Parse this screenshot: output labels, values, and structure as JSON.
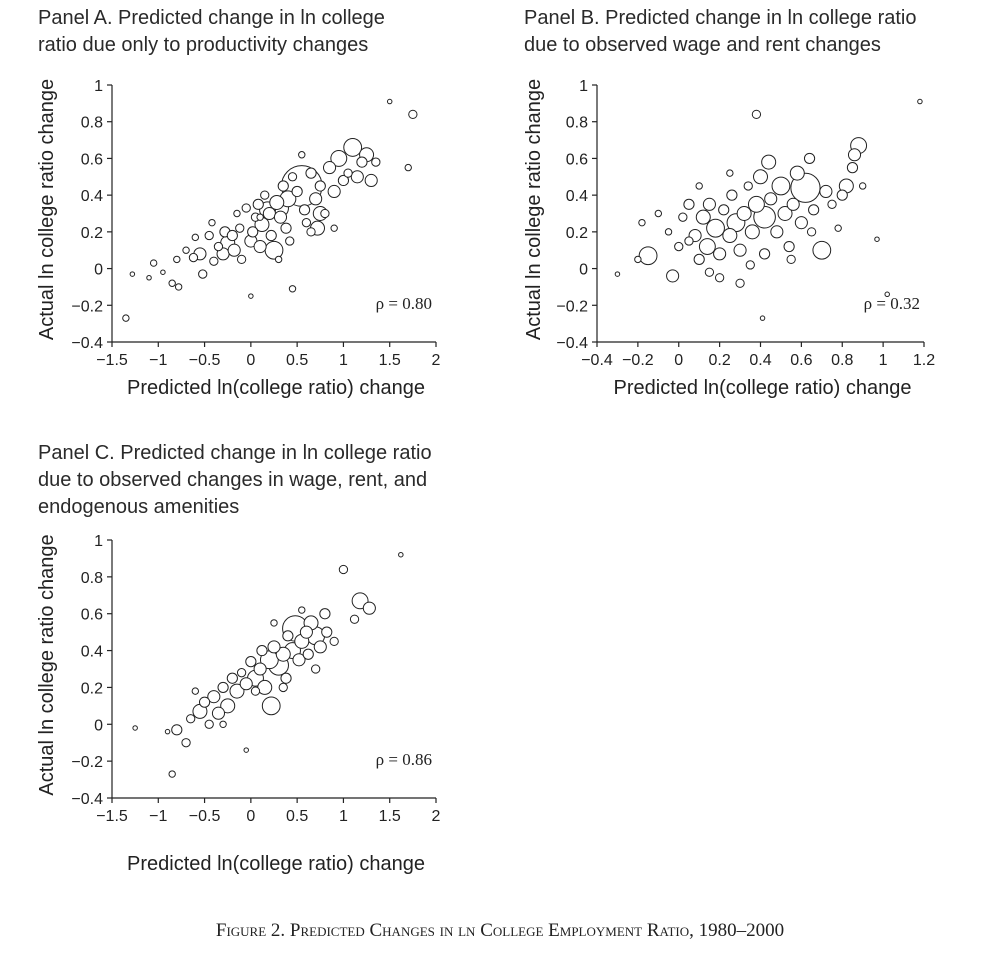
{
  "figure_caption": "Figure 2. Predicted Changes in ln College Employment Ratio, 1980–2000",
  "panels": [
    {
      "title_lines": [
        "Panel A. Predicted change in ln college",
        "ratio due only to productivity changes"
      ]
    },
    {
      "title_lines": [
        "Panel B. Predicted change in ln college ratio",
        "due to observed wage and rent changes"
      ]
    },
    {
      "title_lines": [
        "Panel C. Predicted change in ln college ratio",
        "due to observed changes in wage, rent, and",
        "endogenous amenities"
      ]
    }
  ],
  "chart_data": [
    {
      "type": "scatter",
      "title": "Panel A. Predicted change in ln college ratio due only to productivity changes",
      "xlabel": "Predicted ln(college ratio) change",
      "ylabel": "Actual ln college ratio change",
      "xlim": [
        -1.5,
        2
      ],
      "ylim": [
        -0.4,
        1
      ],
      "xticks": [
        -1.5,
        -1,
        -0.5,
        0,
        0.5,
        1,
        1.5,
        2
      ],
      "xtick_labels": [
        "−1.5",
        "−1",
        "−0.5",
        "0",
        "0.5",
        "1",
        "1.5",
        "2"
      ],
      "yticks": [
        -0.4,
        -0.2,
        0,
        0.2,
        0.4,
        0.6,
        0.8,
        1
      ],
      "ytick_labels": [
        "−0.4",
        "−0.2",
        "0",
        "0.2",
        "0.4",
        "0.6",
        "0.8",
        "1"
      ],
      "annotation": "ρ = 0.80",
      "correlation": 0.8,
      "marker": "hollow circles sized by weight",
      "points": [
        {
          "x": -1.35,
          "y": -0.27,
          "size": 2
        },
        {
          "x": -1.28,
          "y": -0.03,
          "size": 1
        },
        {
          "x": -1.1,
          "y": -0.05,
          "size": 1
        },
        {
          "x": -1.05,
          "y": 0.03,
          "size": 2
        },
        {
          "x": -0.95,
          "y": -0.02,
          "size": 1
        },
        {
          "x": -0.85,
          "y": -0.08,
          "size": 2
        },
        {
          "x": -0.78,
          "y": -0.1,
          "size": 2
        },
        {
          "x": -0.8,
          "y": 0.05,
          "size": 2
        },
        {
          "x": -0.7,
          "y": 0.1,
          "size": 2
        },
        {
          "x": -0.62,
          "y": 0.06,
          "size": 3
        },
        {
          "x": -0.55,
          "y": 0.08,
          "size": 5
        },
        {
          "x": -0.52,
          "y": -0.03,
          "size": 3
        },
        {
          "x": -0.45,
          "y": 0.18,
          "size": 3
        },
        {
          "x": -0.42,
          "y": 0.25,
          "size": 2
        },
        {
          "x": -0.35,
          "y": 0.12,
          "size": 3
        },
        {
          "x": -0.3,
          "y": 0.08,
          "size": 5
        },
        {
          "x": -0.28,
          "y": 0.2,
          "size": 4
        },
        {
          "x": -0.25,
          "y": 0.14,
          "size": 6
        },
        {
          "x": -0.2,
          "y": 0.18,
          "size": 4
        },
        {
          "x": -0.18,
          "y": 0.1,
          "size": 5
        },
        {
          "x": -0.15,
          "y": 0.3,
          "size": 2
        },
        {
          "x": -0.12,
          "y": 0.22,
          "size": 3
        },
        {
          "x": -0.1,
          "y": 0.05,
          "size": 3
        },
        {
          "x": -0.05,
          "y": 0.33,
          "size": 3
        },
        {
          "x": 0.0,
          "y": 0.15,
          "size": 5
        },
        {
          "x": 0.02,
          "y": 0.2,
          "size": 4
        },
        {
          "x": 0.0,
          "y": -0.15,
          "size": 1
        },
        {
          "x": 0.05,
          "y": 0.28,
          "size": 3
        },
        {
          "x": 0.08,
          "y": 0.35,
          "size": 4
        },
        {
          "x": 0.1,
          "y": 0.12,
          "size": 5
        },
        {
          "x": 0.12,
          "y": 0.24,
          "size": 6
        },
        {
          "x": 0.15,
          "y": 0.4,
          "size": 3
        },
        {
          "x": 0.18,
          "y": 0.32,
          "size": 7
        },
        {
          "x": 0.2,
          "y": 0.3,
          "size": 5
        },
        {
          "x": 0.22,
          "y": 0.18,
          "size": 4
        },
        {
          "x": 0.25,
          "y": 0.1,
          "size": 8
        },
        {
          "x": 0.28,
          "y": 0.36,
          "size": 6
        },
        {
          "x": 0.3,
          "y": 0.33,
          "size": 9
        },
        {
          "x": 0.32,
          "y": 0.28,
          "size": 5
        },
        {
          "x": 0.35,
          "y": 0.45,
          "size": 4
        },
        {
          "x": 0.38,
          "y": 0.22,
          "size": 4
        },
        {
          "x": 0.4,
          "y": 0.38,
          "size": 7
        },
        {
          "x": 0.42,
          "y": 0.15,
          "size": 3
        },
        {
          "x": 0.45,
          "y": 0.5,
          "size": 3
        },
        {
          "x": 0.45,
          "y": -0.11,
          "size": 2
        },
        {
          "x": 0.5,
          "y": 0.42,
          "size": 4
        },
        {
          "x": 0.55,
          "y": 0.45,
          "size": 20
        },
        {
          "x": 0.58,
          "y": 0.32,
          "size": 4
        },
        {
          "x": 0.6,
          "y": 0.25,
          "size": 3
        },
        {
          "x": 0.65,
          "y": 0.52,
          "size": 4
        },
        {
          "x": 0.7,
          "y": 0.38,
          "size": 5
        },
        {
          "x": 0.72,
          "y": 0.22,
          "size": 6
        },
        {
          "x": 0.75,
          "y": 0.45,
          "size": 4
        },
        {
          "x": 0.8,
          "y": 0.3,
          "size": 3
        },
        {
          "x": 0.85,
          "y": 0.55,
          "size": 5
        },
        {
          "x": 0.9,
          "y": 0.42,
          "size": 5
        },
        {
          "x": 0.95,
          "y": 0.6,
          "size": 7
        },
        {
          "x": 1.0,
          "y": 0.48,
          "size": 4
        },
        {
          "x": 1.05,
          "y": 0.52,
          "size": 3
        },
        {
          "x": 1.1,
          "y": 0.66,
          "size": 8
        },
        {
          "x": 1.15,
          "y": 0.5,
          "size": 5
        },
        {
          "x": 1.2,
          "y": 0.58,
          "size": 4
        },
        {
          "x": 1.25,
          "y": 0.62,
          "size": 6
        },
        {
          "x": 1.3,
          "y": 0.48,
          "size": 5
        },
        {
          "x": 1.35,
          "y": 0.58,
          "size": 3
        },
        {
          "x": 1.5,
          "y": 0.91,
          "size": 1
        },
        {
          "x": 1.7,
          "y": 0.55,
          "size": 2
        },
        {
          "x": 1.75,
          "y": 0.84,
          "size": 3
        },
        {
          "x": 0.55,
          "y": 0.62,
          "size": 2
        },
        {
          "x": -0.6,
          "y": 0.17,
          "size": 2
        },
        {
          "x": -0.4,
          "y": 0.04,
          "size": 3
        },
        {
          "x": 0.65,
          "y": 0.2,
          "size": 3
        },
        {
          "x": 0.9,
          "y": 0.22,
          "size": 2
        },
        {
          "x": 0.1,
          "y": 0.28,
          "size": 2
        },
        {
          "x": 0.3,
          "y": 0.05,
          "size": 2
        },
        {
          "x": 0.75,
          "y": 0.3,
          "size": 6
        }
      ]
    },
    {
      "type": "scatter",
      "title": "Panel B. Predicted change in ln college ratio due to observed wage and rent changes",
      "xlabel": "Predicted ln(college ratio) change",
      "ylabel": "Actual ln college ratio change",
      "xlim": [
        -0.4,
        1.2
      ],
      "ylim": [
        -0.4,
        1
      ],
      "xticks": [
        -0.4,
        -0.2,
        0,
        0.2,
        0.4,
        0.6,
        0.8,
        1,
        1.2
      ],
      "xtick_labels": [
        "−0.4",
        "−0.2",
        "0",
        "0.2",
        "0.4",
        "0.6",
        "0.8",
        "1",
        "1.2"
      ],
      "yticks": [
        -0.4,
        -0.2,
        0,
        0.2,
        0.4,
        0.6,
        0.8,
        1
      ],
      "ytick_labels": [
        "−0.4",
        "−0.2",
        "0",
        "0.2",
        "0.4",
        "0.6",
        "0.8",
        "1"
      ],
      "annotation": "ρ = 0.32",
      "correlation": 0.32,
      "marker": "hollow circles sized by weight",
      "points": [
        {
          "x": -0.3,
          "y": -0.03,
          "size": 1
        },
        {
          "x": -0.2,
          "y": 0.05,
          "size": 2
        },
        {
          "x": -0.18,
          "y": 0.25,
          "size": 2
        },
        {
          "x": -0.15,
          "y": 0.07,
          "size": 8
        },
        {
          "x": -0.1,
          "y": 0.3,
          "size": 2
        },
        {
          "x": -0.05,
          "y": 0.2,
          "size": 2
        },
        {
          "x": -0.03,
          "y": -0.04,
          "size": 5
        },
        {
          "x": 0.0,
          "y": 0.12,
          "size": 3
        },
        {
          "x": 0.02,
          "y": 0.28,
          "size": 3
        },
        {
          "x": 0.05,
          "y": 0.35,
          "size": 4
        },
        {
          "x": 0.08,
          "y": 0.18,
          "size": 5
        },
        {
          "x": 0.1,
          "y": 0.05,
          "size": 4
        },
        {
          "x": 0.12,
          "y": 0.28,
          "size": 6
        },
        {
          "x": 0.14,
          "y": 0.12,
          "size": 7
        },
        {
          "x": 0.15,
          "y": 0.35,
          "size": 5
        },
        {
          "x": 0.18,
          "y": 0.22,
          "size": 8
        },
        {
          "x": 0.2,
          "y": 0.08,
          "size": 5
        },
        {
          "x": 0.2,
          "y": -0.05,
          "size": 3
        },
        {
          "x": 0.22,
          "y": 0.32,
          "size": 4
        },
        {
          "x": 0.25,
          "y": 0.18,
          "size": 6
        },
        {
          "x": 0.26,
          "y": 0.4,
          "size": 4
        },
        {
          "x": 0.28,
          "y": 0.25,
          "size": 8
        },
        {
          "x": 0.3,
          "y": 0.1,
          "size": 5
        },
        {
          "x": 0.3,
          "y": -0.08,
          "size": 3
        },
        {
          "x": 0.32,
          "y": 0.3,
          "size": 6
        },
        {
          "x": 0.34,
          "y": 0.45,
          "size": 3
        },
        {
          "x": 0.36,
          "y": 0.2,
          "size": 6
        },
        {
          "x": 0.38,
          "y": 0.35,
          "size": 7
        },
        {
          "x": 0.38,
          "y": 0.84,
          "size": 3
        },
        {
          "x": 0.4,
          "y": 0.5,
          "size": 6
        },
        {
          "x": 0.42,
          "y": 0.28,
          "size": 10
        },
        {
          "x": 0.42,
          "y": 0.08,
          "size": 4
        },
        {
          "x": 0.44,
          "y": 0.58,
          "size": 6
        },
        {
          "x": 0.45,
          "y": 0.38,
          "size": 5
        },
        {
          "x": 0.48,
          "y": 0.2,
          "size": 5
        },
        {
          "x": 0.5,
          "y": 0.45,
          "size": 8
        },
        {
          "x": 0.52,
          "y": 0.3,
          "size": 6
        },
        {
          "x": 0.54,
          "y": 0.12,
          "size": 4
        },
        {
          "x": 0.56,
          "y": 0.35,
          "size": 5
        },
        {
          "x": 0.58,
          "y": 0.52,
          "size": 6
        },
        {
          "x": 0.6,
          "y": 0.25,
          "size": 5
        },
        {
          "x": 0.62,
          "y": 0.44,
          "size": 14
        },
        {
          "x": 0.64,
          "y": 0.6,
          "size": 4
        },
        {
          "x": 0.66,
          "y": 0.32,
          "size": 4
        },
        {
          "x": 0.7,
          "y": 0.1,
          "size": 8
        },
        {
          "x": 0.72,
          "y": 0.42,
          "size": 5
        },
        {
          "x": 0.75,
          "y": 0.35,
          "size": 3
        },
        {
          "x": 0.78,
          "y": 0.22,
          "size": 2
        },
        {
          "x": 0.8,
          "y": 0.4,
          "size": 4
        },
        {
          "x": 0.82,
          "y": 0.45,
          "size": 6
        },
        {
          "x": 0.85,
          "y": 0.55,
          "size": 4
        },
        {
          "x": 0.86,
          "y": 0.62,
          "size": 5
        },
        {
          "x": 0.88,
          "y": 0.67,
          "size": 7
        },
        {
          "x": 0.9,
          "y": 0.45,
          "size": 2
        },
        {
          "x": 0.97,
          "y": 0.16,
          "size": 1
        },
        {
          "x": 1.02,
          "y": -0.14,
          "size": 1
        },
        {
          "x": 1.18,
          "y": 0.91,
          "size": 1
        },
        {
          "x": 0.41,
          "y": -0.27,
          "size": 1
        },
        {
          "x": 0.1,
          "y": 0.45,
          "size": 2
        },
        {
          "x": 0.25,
          "y": 0.52,
          "size": 2
        },
        {
          "x": 0.55,
          "y": 0.05,
          "size": 3
        },
        {
          "x": 0.65,
          "y": 0.2,
          "size": 3
        },
        {
          "x": 0.05,
          "y": 0.15,
          "size": 3
        },
        {
          "x": 0.15,
          "y": -0.02,
          "size": 3
        },
        {
          "x": 0.35,
          "y": 0.02,
          "size": 3
        }
      ]
    },
    {
      "type": "scatter",
      "title": "Panel C. Predicted change in ln college ratio due to observed changes in wage, rent, and endogenous amenities",
      "xlabel": "Predicted ln(college ratio) change",
      "ylabel": "Actual ln college ratio change",
      "xlim": [
        -1.5,
        2
      ],
      "ylim": [
        -0.4,
        1
      ],
      "xticks": [
        -1.5,
        -1,
        -0.5,
        0,
        0.5,
        1,
        1.5,
        2
      ],
      "xtick_labels": [
        "−1.5",
        "−1",
        "−0.5",
        "0",
        "0.5",
        "1",
        "1.5",
        "2"
      ],
      "yticks": [
        -0.4,
        -0.2,
        0,
        0.2,
        0.4,
        0.6,
        0.8,
        1
      ],
      "ytick_labels": [
        "−0.4",
        "−0.2",
        "0",
        "0.2",
        "0.4",
        "0.6",
        "0.8",
        "1"
      ],
      "annotation": "ρ = 0.86",
      "correlation": 0.86,
      "marker": "hollow circles sized by weight",
      "points": [
        {
          "x": -1.25,
          "y": -0.02,
          "size": 1
        },
        {
          "x": -0.85,
          "y": -0.27,
          "size": 2
        },
        {
          "x": -0.9,
          "y": -0.04,
          "size": 1
        },
        {
          "x": -0.8,
          "y": -0.03,
          "size": 4
        },
        {
          "x": -0.7,
          "y": -0.1,
          "size": 3
        },
        {
          "x": -0.65,
          "y": 0.03,
          "size": 3
        },
        {
          "x": -0.55,
          "y": 0.07,
          "size": 6
        },
        {
          "x": -0.5,
          "y": 0.12,
          "size": 4
        },
        {
          "x": -0.45,
          "y": 0.0,
          "size": 3
        },
        {
          "x": -0.4,
          "y": 0.15,
          "size": 5
        },
        {
          "x": -0.35,
          "y": 0.06,
          "size": 5
        },
        {
          "x": -0.3,
          "y": 0.2,
          "size": 4
        },
        {
          "x": -0.25,
          "y": 0.1,
          "size": 6
        },
        {
          "x": -0.2,
          "y": 0.25,
          "size": 4
        },
        {
          "x": -0.15,
          "y": 0.18,
          "size": 6
        },
        {
          "x": -0.1,
          "y": 0.28,
          "size": 3
        },
        {
          "x": -0.05,
          "y": 0.22,
          "size": 5
        },
        {
          "x": -0.05,
          "y": -0.14,
          "size": 1
        },
        {
          "x": 0.0,
          "y": 0.34,
          "size": 4
        },
        {
          "x": 0.05,
          "y": 0.25,
          "size": 7
        },
        {
          "x": 0.1,
          "y": 0.3,
          "size": 5
        },
        {
          "x": 0.12,
          "y": 0.4,
          "size": 4
        },
        {
          "x": 0.15,
          "y": 0.2,
          "size": 6
        },
        {
          "x": 0.2,
          "y": 0.35,
          "size": 8
        },
        {
          "x": 0.22,
          "y": 0.1,
          "size": 8
        },
        {
          "x": 0.25,
          "y": 0.42,
          "size": 5
        },
        {
          "x": 0.3,
          "y": 0.32,
          "size": 9
        },
        {
          "x": 0.35,
          "y": 0.38,
          "size": 6
        },
        {
          "x": 0.38,
          "y": 0.25,
          "size": 4
        },
        {
          "x": 0.4,
          "y": 0.48,
          "size": 4
        },
        {
          "x": 0.45,
          "y": 0.4,
          "size": 7
        },
        {
          "x": 0.48,
          "y": 0.52,
          "size": 12
        },
        {
          "x": 0.52,
          "y": 0.35,
          "size": 5
        },
        {
          "x": 0.55,
          "y": 0.45,
          "size": 6
        },
        {
          "x": 0.6,
          "y": 0.5,
          "size": 5
        },
        {
          "x": 0.62,
          "y": 0.38,
          "size": 4
        },
        {
          "x": 0.65,
          "y": 0.55,
          "size": 6
        },
        {
          "x": 0.7,
          "y": 0.48,
          "size": 8
        },
        {
          "x": 0.75,
          "y": 0.42,
          "size": 5
        },
        {
          "x": 0.8,
          "y": 0.6,
          "size": 4
        },
        {
          "x": 0.82,
          "y": 0.5,
          "size": 4
        },
        {
          "x": 0.9,
          "y": 0.45,
          "size": 3
        },
        {
          "x": 1.0,
          "y": 0.84,
          "size": 3
        },
        {
          "x": 1.12,
          "y": 0.57,
          "size": 3
        },
        {
          "x": 1.18,
          "y": 0.67,
          "size": 7
        },
        {
          "x": 1.28,
          "y": 0.63,
          "size": 5
        },
        {
          "x": 1.62,
          "y": 0.92,
          "size": 1
        },
        {
          "x": -0.3,
          "y": 0.0,
          "size": 2
        },
        {
          "x": 0.05,
          "y": 0.18,
          "size": 3
        },
        {
          "x": 0.35,
          "y": 0.2,
          "size": 3
        },
        {
          "x": 0.7,
          "y": 0.3,
          "size": 3
        },
        {
          "x": -0.6,
          "y": 0.18,
          "size": 2
        },
        {
          "x": 0.25,
          "y": 0.55,
          "size": 2
        },
        {
          "x": 0.55,
          "y": 0.62,
          "size": 2
        }
      ]
    }
  ]
}
